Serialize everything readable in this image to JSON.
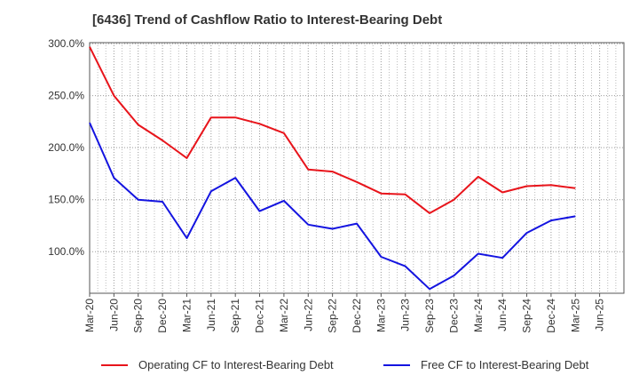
{
  "title": "[6436]  Trend of Cashflow Ratio to Interest-Bearing Debt",
  "chart_data": {
    "type": "line",
    "title": "[6436]  Trend of Cashflow Ratio to Interest-Bearing Debt",
    "xlabel": "",
    "ylabel": "",
    "categories": [
      "Mar-20",
      "Jun-20",
      "Sep-20",
      "Dec-20",
      "Mar-21",
      "Jun-21",
      "Sep-21",
      "Dec-21",
      "Mar-22",
      "Jun-22",
      "Sep-22",
      "Dec-22",
      "Mar-23",
      "Jun-23",
      "Sep-23",
      "Dec-23",
      "Mar-24",
      "Jun-24",
      "Sep-24",
      "Dec-24",
      "Mar-25",
      "Jun-25"
    ],
    "x_tick_labels": [
      "Mar-20",
      "Jun-20",
      "Sep-20",
      "Dec-20",
      "Mar-21",
      "Jun-21",
      "Sep-21",
      "Dec-21",
      "Mar-22",
      "Jun-22",
      "Sep-22",
      "Dec-22",
      "Mar-23",
      "Jun-23",
      "Sep-23",
      "Dec-23",
      "Mar-24",
      "Jun-24",
      "Sep-24",
      "Dec-24",
      "Mar-25",
      "Jun-25"
    ],
    "y_ticks": [
      100,
      150,
      200,
      250,
      300
    ],
    "y_tick_labels": [
      "100.0%",
      "150.0%",
      "200.0%",
      "250.0%",
      "300.0%"
    ],
    "ylim": [
      60,
      301
    ],
    "grid": true,
    "legend_position": "bottom",
    "series": [
      {
        "name": "Operating CF to Interest-Bearing Debt",
        "color": "#e8141b",
        "values": [
          297,
          250,
          222,
          207,
          190,
          229,
          229,
          223,
          214,
          179,
          177,
          167,
          156,
          155,
          137,
          150,
          172,
          157,
          163,
          164,
          161,
          null
        ]
      },
      {
        "name": "Free CF to Interest-Bearing Debt",
        "color": "#1414e0",
        "values": [
          224,
          171,
          150,
          148,
          113,
          158,
          171,
          139,
          149,
          126,
          122,
          127,
          95,
          86,
          64,
          77,
          98,
          94,
          118,
          130,
          134,
          null
        ]
      }
    ]
  }
}
